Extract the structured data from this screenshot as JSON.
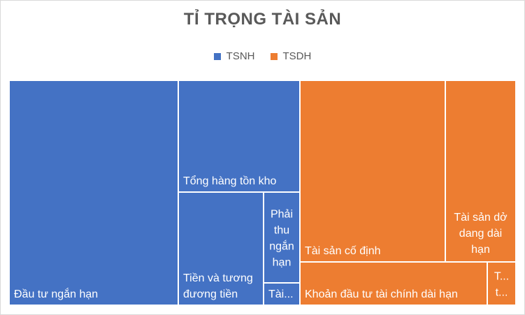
{
  "chart_data": {
    "type": "treemap",
    "title": "TỈ TRỌNG TÀI SẢN",
    "legend_position": "top",
    "series": [
      {
        "name": "TSNH",
        "color": "#4472C4"
      },
      {
        "name": "TSDH",
        "color": "#ED7D31"
      }
    ],
    "items": [
      {
        "label": "Đầu tư ngắn hạn",
        "group": "TSNH",
        "value": 25.0
      },
      {
        "label": "Tổng hàng tồn kho",
        "group": "TSNH",
        "value": 9.2
      },
      {
        "label": "Tiền và tương đương tiền",
        "group": "TSNH",
        "value": 7.3
      },
      {
        "label": "Phải thu ngắn hạn",
        "group": "TSNH",
        "value": 2.7
      },
      {
        "label": "Tài...",
        "group": "TSNH",
        "value": 0.5
      },
      {
        "label": "Tài sản cố định",
        "group": "TSDH",
        "value": 15.1
      },
      {
        "label": "Tài sản dở dang dài hạn",
        "group": "TSDH",
        "value": 6.1
      },
      {
        "label": "Khoản đầu tư tài chính dài hạn",
        "group": "TSDH",
        "value": 6.3
      },
      {
        "label": "T...",
        "group": "TSDH",
        "value": 0.9
      }
    ]
  }
}
